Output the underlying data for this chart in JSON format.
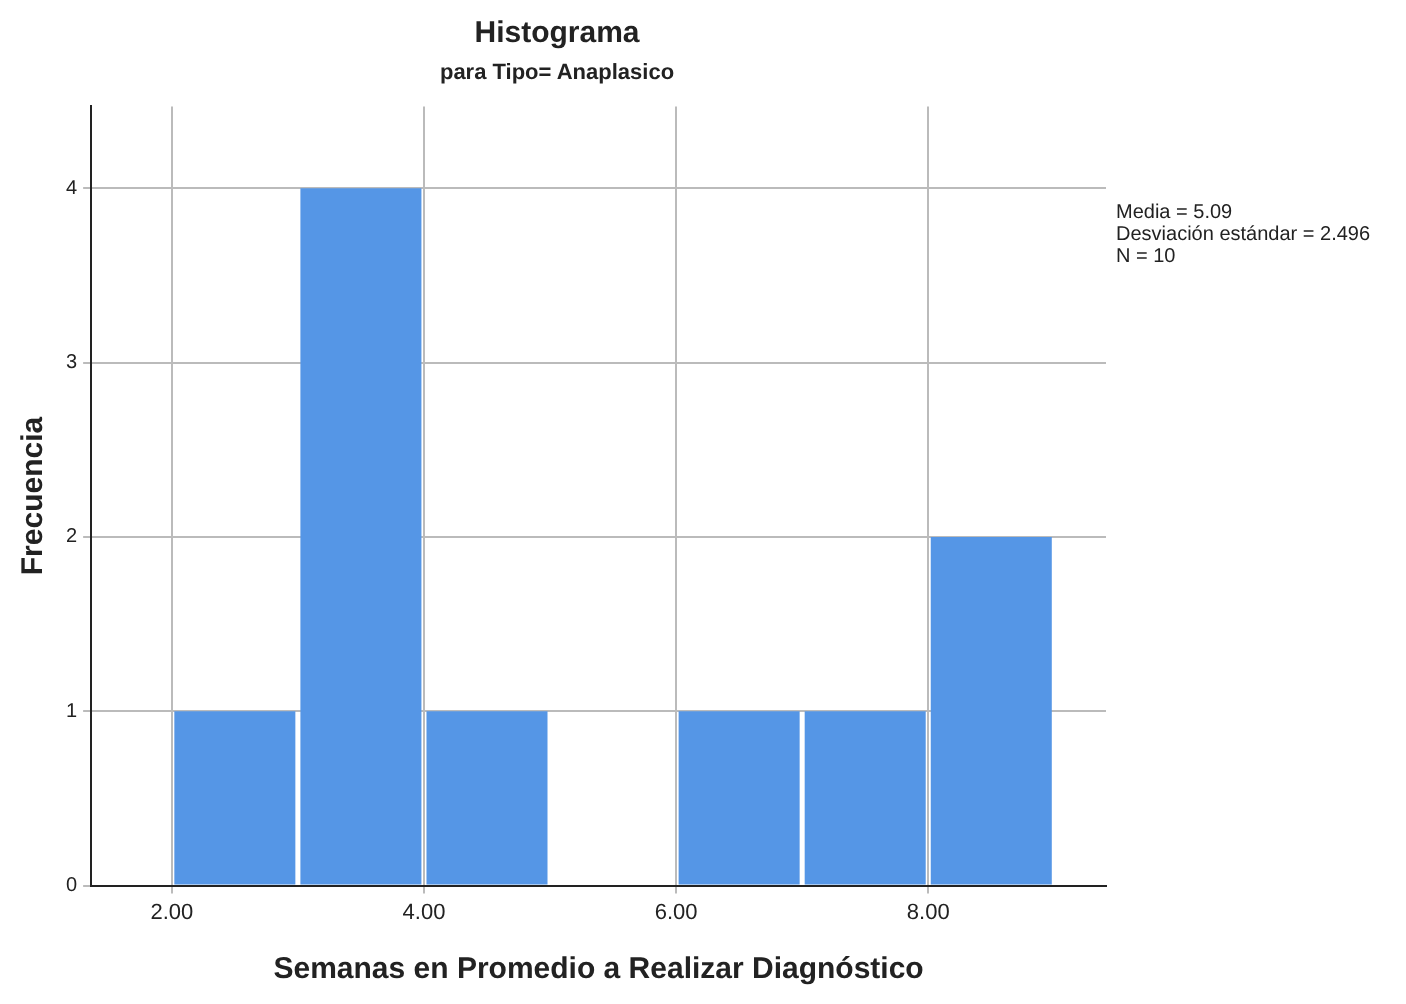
{
  "chart_data": {
    "type": "histogram",
    "title": "Histograma",
    "subtitle": "para Tipo= Anaplasico",
    "xlabel": "Semanas en Promedio a Realizar Diagnóstico",
    "ylabel": "Frecuencia",
    "bins": [
      2,
      3,
      4,
      5,
      6,
      7,
      8,
      9
    ],
    "values": [
      1,
      4,
      1,
      0,
      1,
      1,
      2
    ],
    "color": "#5596e6",
    "xlim": [
      1.36,
      9.41
    ],
    "xticks": [
      {
        "value": 2,
        "label": "2.00"
      },
      {
        "value": 4,
        "label": "4.00"
      },
      {
        "value": 6,
        "label": "6.00"
      },
      {
        "value": 8,
        "label": "8.00"
      }
    ],
    "ylim": [
      0,
      4.47
    ],
    "yticks": [
      0,
      1,
      2,
      3,
      4
    ],
    "grid": true,
    "annotations": [
      "Media = 5.09",
      "Desviación estándar = 2.496",
      "N = 10"
    ]
  }
}
